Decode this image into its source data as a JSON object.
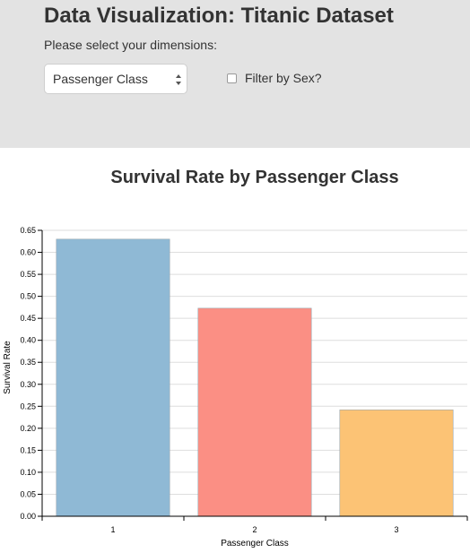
{
  "header": {
    "title": "Data Visualization: Titanic Dataset",
    "prompt": "Please select your dimensions:",
    "dimension_select": {
      "selected": "Passenger Class"
    },
    "filter": {
      "label": "Filter by Sex?",
      "checked": false
    }
  },
  "chart_data": {
    "type": "bar",
    "title": "Survival Rate by Passenger Class",
    "xlabel": "Passenger Class",
    "ylabel": "Survival Rate",
    "categories": [
      "1",
      "2",
      "3"
    ],
    "values": [
      0.63,
      0.473,
      0.242
    ],
    "colors": [
      "#8fb9d5",
      "#fb8f84",
      "#fcc375"
    ],
    "ylim": [
      0,
      0.65
    ],
    "yticks": [
      "0.00",
      "0.05",
      "0.10",
      "0.15",
      "0.20",
      "0.25",
      "0.30",
      "0.35",
      "0.40",
      "0.45",
      "0.50",
      "0.55",
      "0.60",
      "0.65"
    ],
    "grid": true
  }
}
